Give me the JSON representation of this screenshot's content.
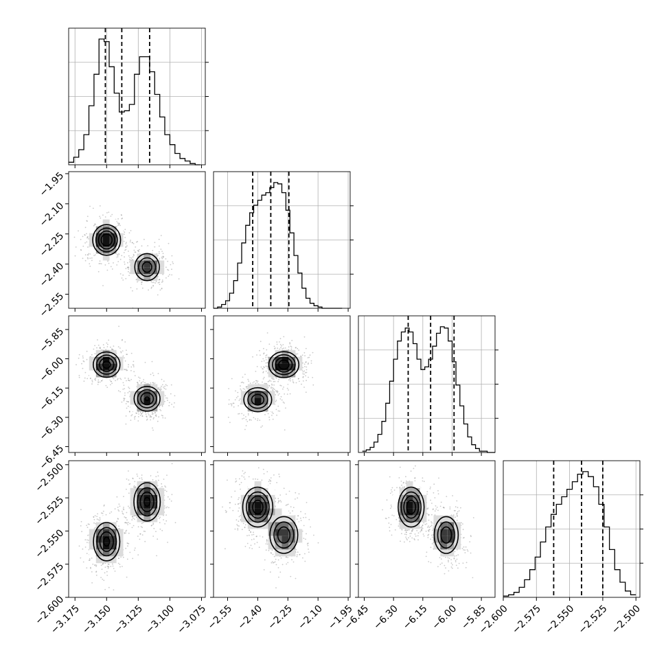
{
  "chart_data": {
    "type": "corner",
    "style": {
      "line_color": "#000000",
      "grid_color": "#b0b0b0",
      "point_color": "#888888",
      "density_colors": [
        "#ffffff",
        "#dcdcdc",
        "#a9a9a9",
        "#707070",
        "#3a3a3a",
        "#111111"
      ]
    },
    "parameters": [
      {
        "range": [
          -3.18,
          -3.072
        ],
        "ticks": [
          -3.175,
          -3.15,
          -3.125,
          -3.1,
          -3.075
        ],
        "tick_labels": [
          "−3.175",
          "−3.150",
          "−3.125",
          "−3.100",
          "−3.075"
        ],
        "modes": [
          {
            "center": -3.15,
            "sigma": 0.0065,
            "weight": 0.5
          },
          {
            "center": -3.117,
            "sigma": 0.0075,
            "weight": 0.5
          }
        ],
        "quantiles": [
          -3.151,
          -3.138,
          -3.116
        ],
        "histogram": {
          "edges": [
            -3.18,
            -3.176,
            -3.172,
            -3.168,
            -3.164,
            -3.16,
            -3.156,
            -3.152,
            -3.148,
            -3.144,
            -3.14,
            -3.136,
            -3.132,
            -3.128,
            -3.124,
            -3.12,
            -3.116,
            -3.112,
            -3.108,
            -3.104,
            -3.1,
            -3.096,
            -3.092,
            -3.088,
            -3.084,
            -3.08,
            -3.076
          ],
          "counts": [
            2,
            6,
            12,
            24,
            47,
            72,
            100,
            98,
            78,
            57,
            42,
            43,
            48,
            72,
            86,
            86,
            74,
            56,
            38,
            24,
            16,
            9,
            5,
            3,
            1,
            0
          ]
        }
      },
      {
        "range": [
          -2.62,
          -1.94
        ],
        "ticks": [
          -2.55,
          -2.4,
          -2.25,
          -2.1,
          -1.95
        ],
        "tick_labels": [
          "−2.55",
          "−2.40",
          "−2.25",
          "−2.10",
          "−1.95"
        ],
        "quantiles": [
          -2.425,
          -2.335,
          -2.245
        ],
        "histogram": {
          "edges": [
            -2.62,
            -2.6,
            -2.58,
            -2.56,
            -2.54,
            -2.52,
            -2.5,
            -2.48,
            -2.46,
            -2.44,
            -2.42,
            -2.4,
            -2.38,
            -2.36,
            -2.34,
            -2.32,
            -2.3,
            -2.28,
            -2.26,
            -2.24,
            -2.22,
            -2.2,
            -2.18,
            -2.16,
            -2.14,
            -2.12,
            -2.1,
            -2.08,
            -2.06,
            -2.04,
            -2.02,
            -2.0,
            -1.98
          ],
          "counts": [
            0,
            1,
            3,
            6,
            12,
            22,
            36,
            52,
            66,
            76,
            82,
            86,
            90,
            92,
            96,
            100,
            99,
            92,
            78,
            60,
            42,
            28,
            16,
            8,
            4,
            2,
            1,
            0,
            0,
            0,
            0,
            0
          ]
        }
      },
      {
        "range": [
          -6.48,
          -5.78
        ],
        "ticks": [
          -6.45,
          -6.3,
          -6.15,
          -6.0,
          -5.85
        ],
        "tick_labels": [
          "−6.45",
          "−6.30",
          "−6.15",
          "−6.00",
          "−5.85"
        ],
        "quantiles": [
          -6.225,
          -6.11,
          -5.99
        ],
        "histogram": {
          "edges": [
            -6.46,
            -6.44,
            -6.42,
            -6.4,
            -6.38,
            -6.36,
            -6.34,
            -6.32,
            -6.3,
            -6.28,
            -6.26,
            -6.24,
            -6.22,
            -6.2,
            -6.18,
            -6.16,
            -6.14,
            -6.12,
            -6.1,
            -6.08,
            -6.06,
            -6.04,
            -6.02,
            -6.0,
            -5.98,
            -5.96,
            -5.94,
            -5.92,
            -5.9,
            -5.88,
            -5.86,
            -5.84,
            -5.82,
            -5.8,
            -5.78
          ],
          "counts": [
            1,
            2,
            4,
            8,
            14,
            24,
            38,
            55,
            72,
            86,
            93,
            96,
            93,
            84,
            72,
            64,
            66,
            72,
            82,
            92,
            97,
            96,
            86,
            70,
            52,
            36,
            22,
            12,
            6,
            3,
            1,
            1,
            0,
            0
          ]
        }
      },
      {
        "range": [
          -2.6,
          -2.497
        ],
        "ticks": [
          -2.6,
          -2.575,
          -2.55,
          -2.525,
          -2.5
        ],
        "tick_labels": [
          "−2.600",
          "−2.575",
          "−2.550",
          "−2.525",
          "−2.500"
        ],
        "quantiles": [
          -2.562,
          -2.541,
          -2.525
        ],
        "histogram": {
          "edges": [
            -2.6,
            -2.596,
            -2.592,
            -2.588,
            -2.584,
            -2.58,
            -2.576,
            -2.572,
            -2.568,
            -2.564,
            -2.56,
            -2.556,
            -2.552,
            -2.548,
            -2.544,
            -2.54,
            -2.536,
            -2.532,
            -2.528,
            -2.524,
            -2.52,
            -2.516,
            -2.512,
            -2.508,
            -2.504,
            -2.5
          ],
          "counts": [
            1,
            2,
            4,
            8,
            14,
            22,
            32,
            44,
            56,
            66,
            74,
            80,
            86,
            92,
            98,
            100,
            96,
            88,
            74,
            56,
            38,
            22,
            12,
            5,
            2
          ]
        }
      }
    ],
    "panels_2d": [
      {
        "row": 1,
        "col": 0,
        "modes": [
          {
            "x": -3.15,
            "y": -2.28,
            "w": 0.58
          },
          {
            "x": -3.118,
            "y": -2.415,
            "w": 0.42
          }
        ],
        "spread": [
          0.0065,
          0.045
        ]
      },
      {
        "row": 2,
        "col": 0,
        "modes": [
          {
            "x": -3.15,
            "y": -6.03,
            "w": 0.52
          },
          {
            "x": -3.118,
            "y": -6.205,
            "w": 0.48
          }
        ],
        "spread": [
          0.0065,
          0.04
        ]
      },
      {
        "row": 2,
        "col": 1,
        "modes": [
          {
            "x": -2.27,
            "y": -6.03,
            "w": 0.55
          },
          {
            "x": -2.4,
            "y": -6.21,
            "w": 0.45
          }
        ],
        "spread": [
          0.045,
          0.04
        ]
      },
      {
        "row": 3,
        "col": 0,
        "modes": [
          {
            "x": -3.15,
            "y": -2.558,
            "w": 0.5
          },
          {
            "x": -3.118,
            "y": -2.528,
            "w": 0.5
          }
        ],
        "spread": [
          0.0065,
          0.009
        ]
      },
      {
        "row": 3,
        "col": 1,
        "modes": [
          {
            "x": -2.4,
            "y": -2.532,
            "w": 0.55
          },
          {
            "x": -2.27,
            "y": -2.553,
            "w": 0.45
          }
        ],
        "spread": [
          0.045,
          0.009
        ]
      },
      {
        "row": 3,
        "col": 2,
        "modes": [
          {
            "x": -6.21,
            "y": -2.532,
            "w": 0.55
          },
          {
            "x": -6.03,
            "y": -2.553,
            "w": 0.45
          }
        ],
        "spread": [
          0.04,
          0.009
        ]
      }
    ]
  }
}
